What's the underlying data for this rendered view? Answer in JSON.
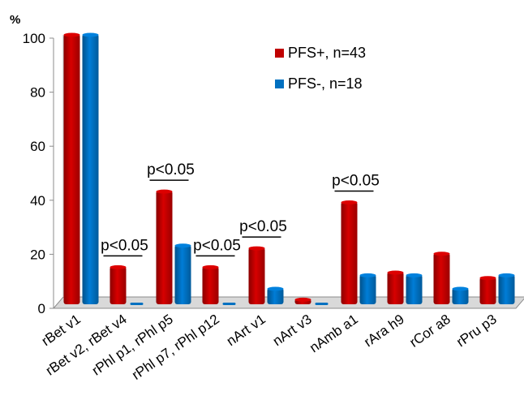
{
  "chart_data": {
    "type": "bar",
    "title": "",
    "xlabel": "",
    "ylabel": "%",
    "ylim": [
      0,
      100
    ],
    "yticks": [
      "0",
      "20",
      "40",
      "60",
      "80",
      "100"
    ],
    "grid": false,
    "legend_position": "top-right",
    "categories": [
      "rBet v1",
      "rBet v2, rBet v4",
      "rPhl p1, rPhl p5",
      "rPhl p7,  rPhl p12",
      "nArt v1",
      "nArt v3",
      "nAmb a1",
      "rAra h9",
      "rCor a8",
      "rPru p3"
    ],
    "series": [
      {
        "name": "PFS+, n=43",
        "color": "#c00000",
        "values": [
          100,
          14,
          42,
          14,
          21,
          2,
          38,
          12,
          19,
          10
        ]
      },
      {
        "name": "PFS-, n=18",
        "color": "#0070c0",
        "values": [
          100,
          0,
          22,
          0,
          6,
          0,
          11,
          11,
          6,
          11
        ]
      }
    ],
    "annotations": [
      {
        "text": "p<0.05",
        "category_index": 1
      },
      {
        "text": "p<0.05",
        "category_index": 2
      },
      {
        "text": "p<0.05",
        "category_index": 3
      },
      {
        "text": "p<0.05",
        "category_index": 4
      },
      {
        "text": "p<0.05",
        "category_index": 6
      }
    ]
  }
}
